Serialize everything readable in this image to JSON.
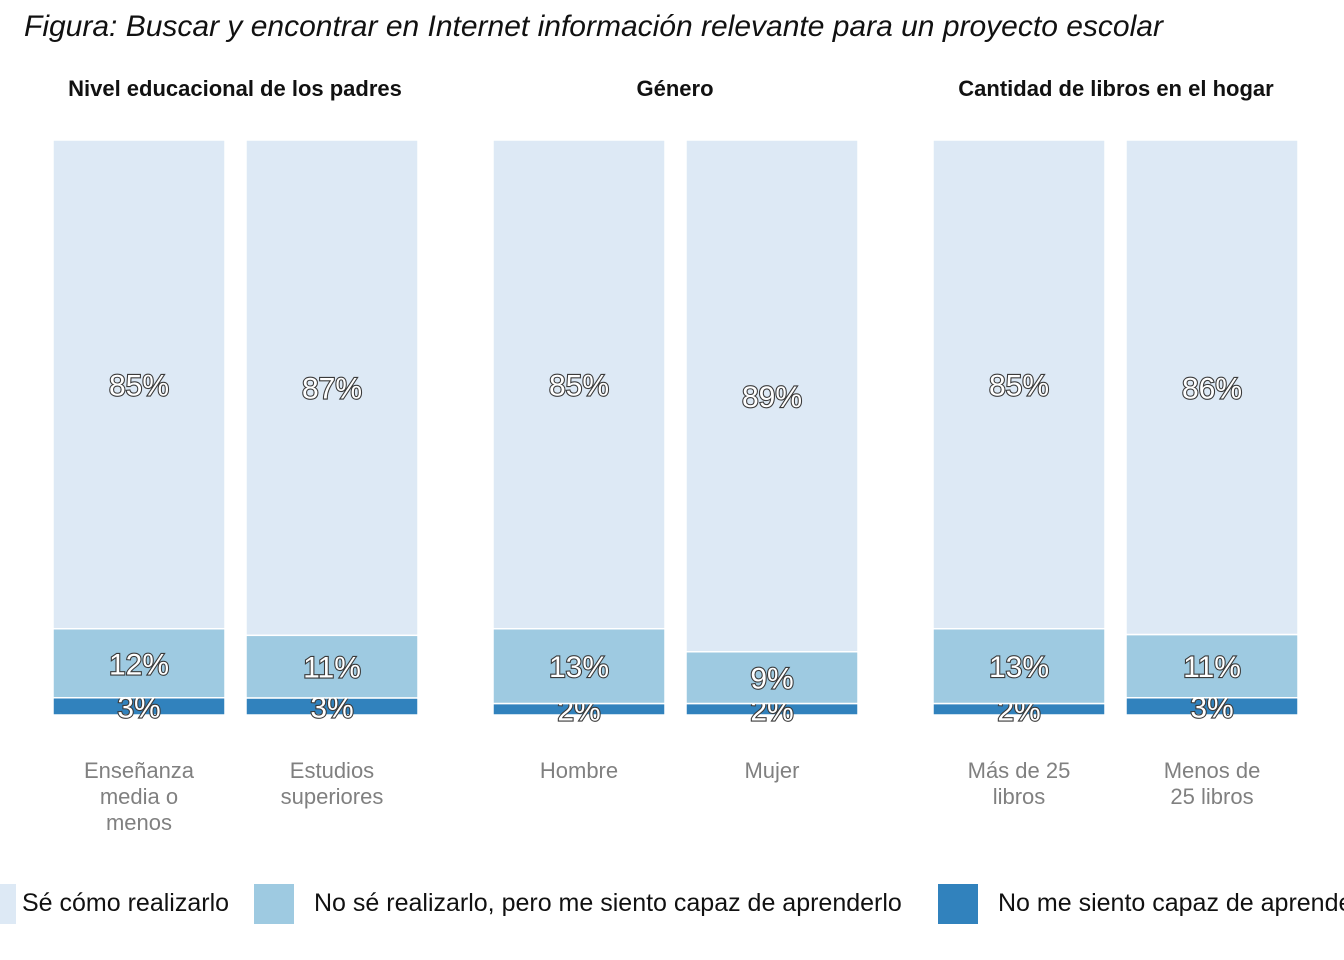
{
  "chart_data": {
    "type": "bar",
    "stacked": true,
    "title": "Figura: Buscar y encontrar en Internet información relevante para un proyecto escolar",
    "ylim": [
      0,
      100
    ],
    "grid": false,
    "legend_position": "bottom",
    "panels": [
      {
        "title": "Nivel educacional de los padres",
        "categories": [
          "Enseñanza media o menos",
          "Estudios superiores"
        ],
        "category_lines": [
          [
            "Enseñanza",
            "media o",
            "menos"
          ],
          [
            "Estudios",
            "superiores"
          ]
        ]
      },
      {
        "title": "Género",
        "categories": [
          "Hombre",
          "Mujer"
        ],
        "category_lines": [
          [
            "Hombre"
          ],
          [
            "Mujer"
          ]
        ]
      },
      {
        "title": "Cantidad de libros en el hogar",
        "categories": [
          "Más de 25 libros",
          "Menos de 25 libros"
        ],
        "category_lines": [
          [
            "Más de 25",
            "libros"
          ],
          [
            "Menos de",
            "25 libros"
          ]
        ]
      }
    ],
    "series": [
      {
        "name": "Sé cómo realizarlo",
        "color": "#dde9f5",
        "values": [
          [
            85,
            87
          ],
          [
            85,
            89
          ],
          [
            85,
            86
          ]
        ],
        "labels": [
          [
            "85%",
            "87%"
          ],
          [
            "85%",
            "89%"
          ],
          [
            "85%",
            "86%"
          ]
        ]
      },
      {
        "name": "No sé realizarlo, pero me siento capaz de aprenderlo",
        "color": "#9ecae1",
        "values": [
          [
            12,
            11
          ],
          [
            13,
            9
          ],
          [
            13,
            11
          ]
        ],
        "labels": [
          [
            "12%",
            "11%"
          ],
          [
            "13%",
            "9%"
          ],
          [
            "13%",
            "11%"
          ]
        ]
      },
      {
        "name": "No me siento capaz de aprenderlo",
        "color": "#3182bd",
        "values": [
          [
            3,
            3
          ],
          [
            2,
            2
          ],
          [
            2,
            3
          ]
        ],
        "labels": [
          [
            "3%",
            "3%"
          ],
          [
            "2%",
            "2%"
          ],
          [
            "2%",
            "3%"
          ]
        ]
      }
    ]
  }
}
